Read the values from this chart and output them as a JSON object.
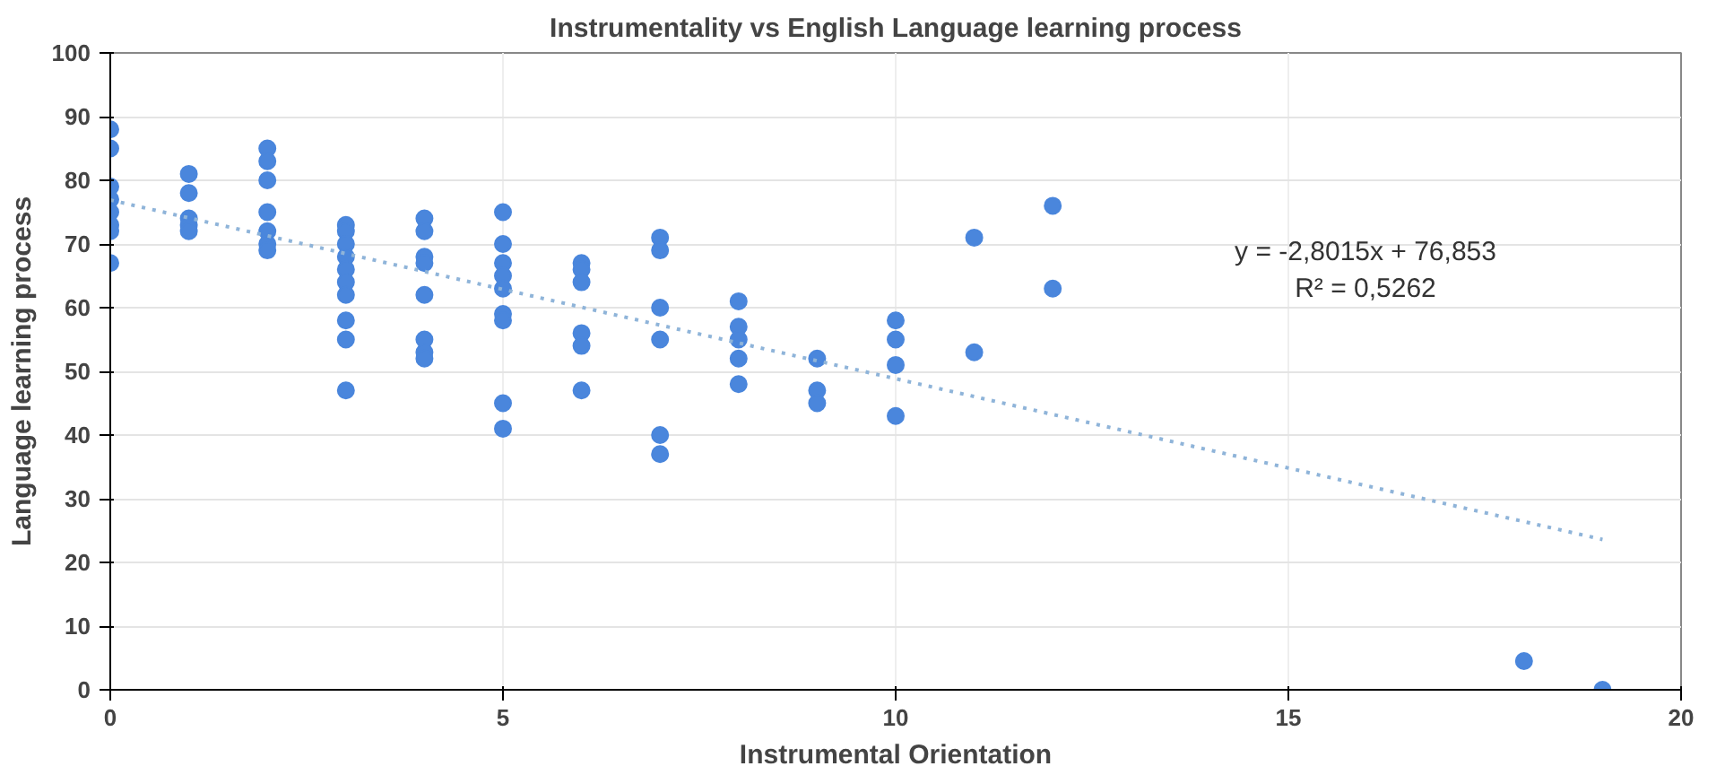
{
  "chart_data": {
    "type": "scatter",
    "title": "Instrumentality vs English Language learning process",
    "xlabel": "Instrumental Orientation",
    "ylabel": "Language learning process",
    "series": [
      {
        "color": "#4a86dc",
        "marker": "circle",
        "x": [
          0,
          0,
          0,
          0,
          0,
          0,
          0,
          0,
          1,
          1,
          1,
          1,
          1,
          2,
          2,
          2,
          2,
          2,
          2,
          2,
          3,
          3,
          3,
          3,
          3,
          3,
          3,
          3,
          3,
          3,
          4,
          4,
          4,
          4,
          4,
          4,
          4,
          4,
          5,
          5,
          5,
          5,
          5,
          5,
          5,
          5,
          5,
          6,
          6,
          6,
          6,
          6,
          6,
          7,
          7,
          7,
          7,
          7,
          7,
          8,
          8,
          8,
          8,
          8,
          9,
          9,
          9,
          10,
          10,
          10,
          10,
          11,
          11,
          12,
          12,
          18,
          19
        ],
        "values": [
          88,
          85,
          79,
          77,
          75,
          73,
          72,
          67,
          81,
          78,
          74,
          73,
          72,
          85,
          83,
          80,
          75,
          72,
          70,
          69,
          73,
          72,
          70,
          68,
          66,
          64,
          62,
          58,
          55,
          47,
          74,
          72,
          68,
          67,
          62,
          55,
          53,
          52,
          75,
          70,
          67,
          65,
          63,
          59,
          58,
          45,
          41,
          67,
          66,
          64,
          56,
          54,
          47,
          71,
          69,
          60,
          55,
          40,
          37,
          61,
          57,
          55,
          52,
          48,
          52,
          47,
          45,
          58,
          55,
          51,
          43,
          71,
          53,
          76,
          63,
          4.5,
          0
        ]
      },
      {
        "type": "line",
        "color": "#8fb4d9",
        "line_style": "dotted",
        "x": [
          0,
          19
        ],
        "values": [
          76.9,
          23.6
        ]
      }
    ],
    "annotations": [
      "y = -2,8015x + 76,853\nR² = 0,5262"
    ],
    "xlim": [
      0,
      20
    ],
    "xticks": [
      0,
      5,
      10,
      15,
      20
    ],
    "ylim": [
      0,
      100
    ],
    "yticks": [
      0,
      10,
      20,
      30,
      40,
      50,
      60,
      70,
      80,
      90,
      100
    ],
    "grid": true
  }
}
